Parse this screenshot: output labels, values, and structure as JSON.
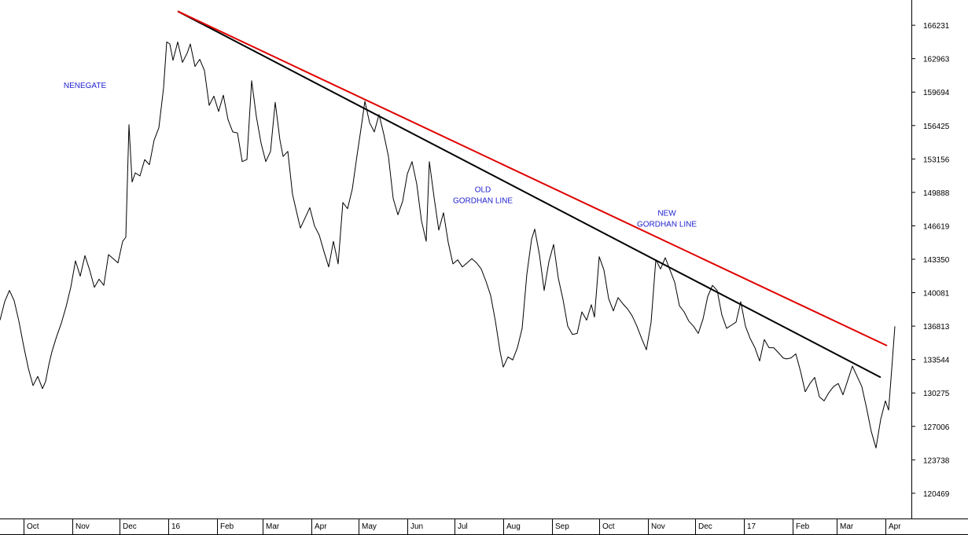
{
  "chart_data": {
    "type": "line",
    "title": "",
    "xlabel": "",
    "ylabel": "",
    "ylim": [
      118000,
      168700
    ],
    "grid": false,
    "y_ticks": [
      166231,
      162963,
      159694,
      156425,
      153156,
      149888,
      146619,
      143350,
      140081,
      136813,
      133544,
      130275,
      127006,
      123738,
      120469
    ],
    "x_ticks": [
      "Oct",
      "Nov",
      "Dec",
      "16",
      "Feb",
      "Mar",
      "Apr",
      "May",
      "Jun",
      "Jul",
      "Aug",
      "Sep",
      "Oct",
      "Nov",
      "Dec",
      "17",
      "Feb",
      "Mar",
      "Apr"
    ],
    "x_tick_index": [
      15,
      46,
      76,
      107,
      138,
      167,
      198,
      228,
      259,
      289,
      320,
      351,
      381,
      412,
      442,
      473,
      504,
      532,
      563
    ],
    "series": [
      {
        "color": "#000000",
        "values": [
          [
            0,
            137400
          ],
          [
            3,
            139200
          ],
          [
            6,
            140300
          ],
          [
            9,
            139300
          ],
          [
            12,
            137300
          ],
          [
            15,
            134900
          ],
          [
            18,
            132700
          ],
          [
            21,
            131000
          ],
          [
            24,
            131900
          ],
          [
            27,
            130700
          ],
          [
            29,
            131400
          ],
          [
            31,
            133000
          ],
          [
            33,
            134300
          ],
          [
            36,
            135800
          ],
          [
            39,
            137100
          ],
          [
            42,
            138700
          ],
          [
            45,
            140600
          ],
          [
            48,
            143200
          ],
          [
            51,
            141700
          ],
          [
            54,
            143700
          ],
          [
            57,
            142300
          ],
          [
            60,
            140600
          ],
          [
            63,
            141400
          ],
          [
            66,
            140800
          ],
          [
            69,
            143800
          ],
          [
            72,
            143400
          ],
          [
            75,
            143000
          ],
          [
            78,
            145100
          ],
          [
            80,
            145500
          ],
          [
            82,
            156500
          ],
          [
            84,
            150900
          ],
          [
            86,
            151800
          ],
          [
            89,
            151500
          ],
          [
            92,
            153100
          ],
          [
            95,
            152600
          ],
          [
            98,
            155000
          ],
          [
            101,
            156200
          ],
          [
            104,
            160100
          ],
          [
            106,
            164600
          ],
          [
            108,
            164400
          ],
          [
            110,
            162800
          ],
          [
            113,
            164600
          ],
          [
            116,
            162600
          ],
          [
            119,
            163500
          ],
          [
            121,
            164400
          ],
          [
            124,
            162200
          ],
          [
            127,
            162900
          ],
          [
            130,
            161800
          ],
          [
            133,
            158400
          ],
          [
            136,
            159300
          ],
          [
            139,
            157800
          ],
          [
            142,
            159400
          ],
          [
            145,
            157000
          ],
          [
            148,
            155800
          ],
          [
            151,
            155700
          ],
          [
            154,
            152900
          ],
          [
            157,
            153100
          ],
          [
            160,
            160800
          ],
          [
            163,
            157300
          ],
          [
            166,
            154700
          ],
          [
            169,
            152900
          ],
          [
            172,
            153900
          ],
          [
            175,
            158700
          ],
          [
            178,
            155000
          ],
          [
            180,
            153400
          ],
          [
            183,
            153900
          ],
          [
            186,
            149700
          ],
          [
            189,
            147700
          ],
          [
            191,
            146400
          ],
          [
            194,
            147400
          ],
          [
            197,
            148400
          ],
          [
            200,
            146600
          ],
          [
            203,
            145700
          ],
          [
            206,
            144100
          ],
          [
            209,
            142600
          ],
          [
            212,
            145100
          ],
          [
            215,
            142900
          ],
          [
            218,
            148900
          ],
          [
            221,
            148300
          ],
          [
            224,
            150200
          ],
          [
            227,
            153500
          ],
          [
            230,
            156600
          ],
          [
            232,
            158800
          ],
          [
            235,
            156700
          ],
          [
            238,
            155800
          ],
          [
            241,
            157500
          ],
          [
            244,
            155600
          ],
          [
            247,
            153400
          ],
          [
            250,
            149300
          ],
          [
            253,
            147700
          ],
          [
            256,
            149000
          ],
          [
            259,
            151700
          ],
          [
            262,
            152900
          ],
          [
            265,
            150700
          ],
          [
            268,
            147100
          ],
          [
            271,
            145100
          ],
          [
            273,
            152900
          ],
          [
            276,
            149400
          ],
          [
            279,
            146200
          ],
          [
            282,
            147900
          ],
          [
            285,
            145000
          ],
          [
            288,
            142900
          ],
          [
            291,
            143300
          ],
          [
            294,
            142600
          ],
          [
            297,
            143000
          ],
          [
            300,
            143400
          ],
          [
            303,
            143000
          ],
          [
            306,
            142400
          ],
          [
            309,
            141200
          ],
          [
            312,
            139800
          ],
          [
            315,
            137300
          ],
          [
            318,
            134300
          ],
          [
            320,
            132800
          ],
          [
            323,
            133800
          ],
          [
            326,
            133500
          ],
          [
            329,
            134700
          ],
          [
            332,
            136600
          ],
          [
            335,
            141900
          ],
          [
            338,
            145300
          ],
          [
            340,
            146300
          ],
          [
            343,
            143800
          ],
          [
            346,
            140300
          ],
          [
            349,
            143100
          ],
          [
            352,
            144800
          ],
          [
            355,
            141500
          ],
          [
            358,
            139400
          ],
          [
            361,
            136800
          ],
          [
            364,
            136000
          ],
          [
            367,
            136100
          ],
          [
            370,
            138200
          ],
          [
            373,
            137400
          ],
          [
            376,
            138900
          ],
          [
            378,
            137700
          ],
          [
            381,
            143600
          ],
          [
            384,
            142300
          ],
          [
            387,
            139500
          ],
          [
            390,
            138300
          ],
          [
            393,
            139600
          ],
          [
            396,
            139000
          ],
          [
            399,
            138500
          ],
          [
            402,
            137800
          ],
          [
            405,
            136800
          ],
          [
            408,
            135600
          ],
          [
            411,
            134500
          ],
          [
            414,
            137200
          ],
          [
            417,
            143300
          ],
          [
            420,
            142400
          ],
          [
            423,
            143500
          ],
          [
            426,
            142300
          ],
          [
            429,
            141100
          ],
          [
            432,
            138800
          ],
          [
            435,
            138200
          ],
          [
            438,
            137300
          ],
          [
            441,
            136800
          ],
          [
            444,
            136100
          ],
          [
            447,
            137500
          ],
          [
            450,
            139700
          ],
          [
            453,
            140800
          ],
          [
            456,
            140300
          ],
          [
            459,
            137900
          ],
          [
            462,
            136600
          ],
          [
            465,
            136900
          ],
          [
            468,
            137200
          ],
          [
            471,
            139200
          ],
          [
            474,
            136800
          ],
          [
            477,
            135600
          ],
          [
            480,
            134700
          ],
          [
            483,
            133400
          ],
          [
            486,
            135500
          ],
          [
            489,
            134700
          ],
          [
            492,
            134700
          ],
          [
            495,
            134200
          ],
          [
            498,
            133700
          ],
          [
            500,
            133600
          ],
          [
            503,
            133700
          ],
          [
            506,
            134100
          ],
          [
            509,
            132400
          ],
          [
            512,
            130400
          ],
          [
            515,
            131200
          ],
          [
            518,
            131800
          ],
          [
            521,
            129900
          ],
          [
            524,
            129500
          ],
          [
            527,
            130300
          ],
          [
            530,
            130900
          ],
          [
            533,
            131200
          ],
          [
            536,
            130100
          ],
          [
            539,
            131500
          ],
          [
            542,
            132900
          ],
          [
            545,
            131900
          ],
          [
            548,
            130900
          ],
          [
            551,
            128800
          ],
          [
            554,
            126500
          ],
          [
            557,
            124900
          ],
          [
            560,
            127700
          ],
          [
            563,
            129500
          ],
          [
            565,
            128600
          ],
          [
            567,
            132600
          ],
          [
            569,
            136800
          ]
        ]
      }
    ],
    "trendlines": [
      {
        "color": "#000000",
        "from": [
          113,
          167600
        ],
        "to": [
          560,
          131800
        ]
      },
      {
        "color": "#e00000",
        "from": [
          113,
          167600
        ],
        "to": [
          564,
          134900
        ]
      }
    ],
    "annotations": [
      {
        "lines": [
          "NENEGATE"
        ],
        "at": [
          54,
          160100
        ]
      },
      {
        "lines": [
          "OLD",
          "GORDHAN LINE"
        ],
        "at": [
          307,
          149900
        ]
      },
      {
        "lines": [
          "NEW",
          "GORDHAN LINE"
        ],
        "at": [
          424,
          147600
        ]
      }
    ]
  }
}
